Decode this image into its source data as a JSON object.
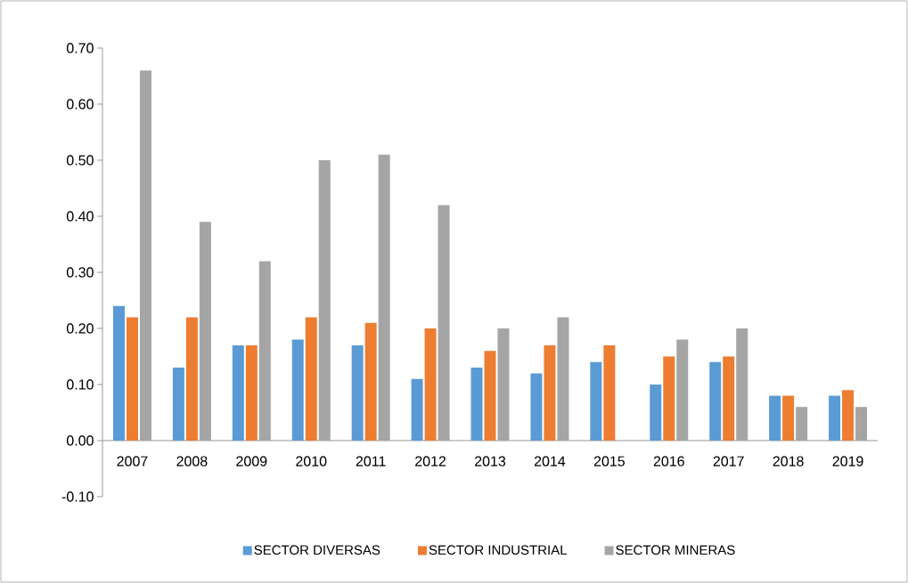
{
  "chart_data": {
    "type": "bar",
    "categories": [
      "2007",
      "2008",
      "2009",
      "2010",
      "2011",
      "2012",
      "2013",
      "2014",
      "2015",
      "2016",
      "2017",
      "2018",
      "2019"
    ],
    "series": [
      {
        "name": "SECTOR DIVERSAS",
        "color": "#5b9bd5",
        "values": [
          0.24,
          0.13,
          0.17,
          0.18,
          0.17,
          0.11,
          0.13,
          0.12,
          0.14,
          0.1,
          0.14,
          0.08,
          0.08
        ]
      },
      {
        "name": "SECTOR INDUSTRIAL",
        "color": "#ed7d31",
        "values": [
          0.22,
          0.22,
          0.17,
          0.22,
          0.21,
          0.2,
          0.16,
          0.17,
          0.17,
          0.15,
          0.15,
          0.08,
          0.09
        ]
      },
      {
        "name": "SECTOR MINERAS",
        "color": "#a5a5a5",
        "values": [
          0.66,
          0.39,
          0.32,
          0.5,
          0.51,
          0.42,
          0.2,
          0.22,
          0.0,
          0.18,
          0.2,
          0.06,
          0.06
        ]
      }
    ],
    "ylim": [
      -0.1,
      0.7
    ],
    "yticks": [
      {
        "value": -0.1,
        "label": "-0.10"
      },
      {
        "value": 0,
        "label": "0.00"
      },
      {
        "value": 0.1,
        "label": "0.10"
      },
      {
        "value": 0.2,
        "label": "0.20"
      },
      {
        "value": 0.3,
        "label": "0.30"
      },
      {
        "value": 0.4,
        "label": "0.40"
      },
      {
        "value": 0.5,
        "label": "0.50"
      },
      {
        "value": 0.6,
        "label": "0.60"
      },
      {
        "value": 0.7,
        "label": "0.70"
      }
    ],
    "grid": false,
    "legend": "bottom"
  }
}
